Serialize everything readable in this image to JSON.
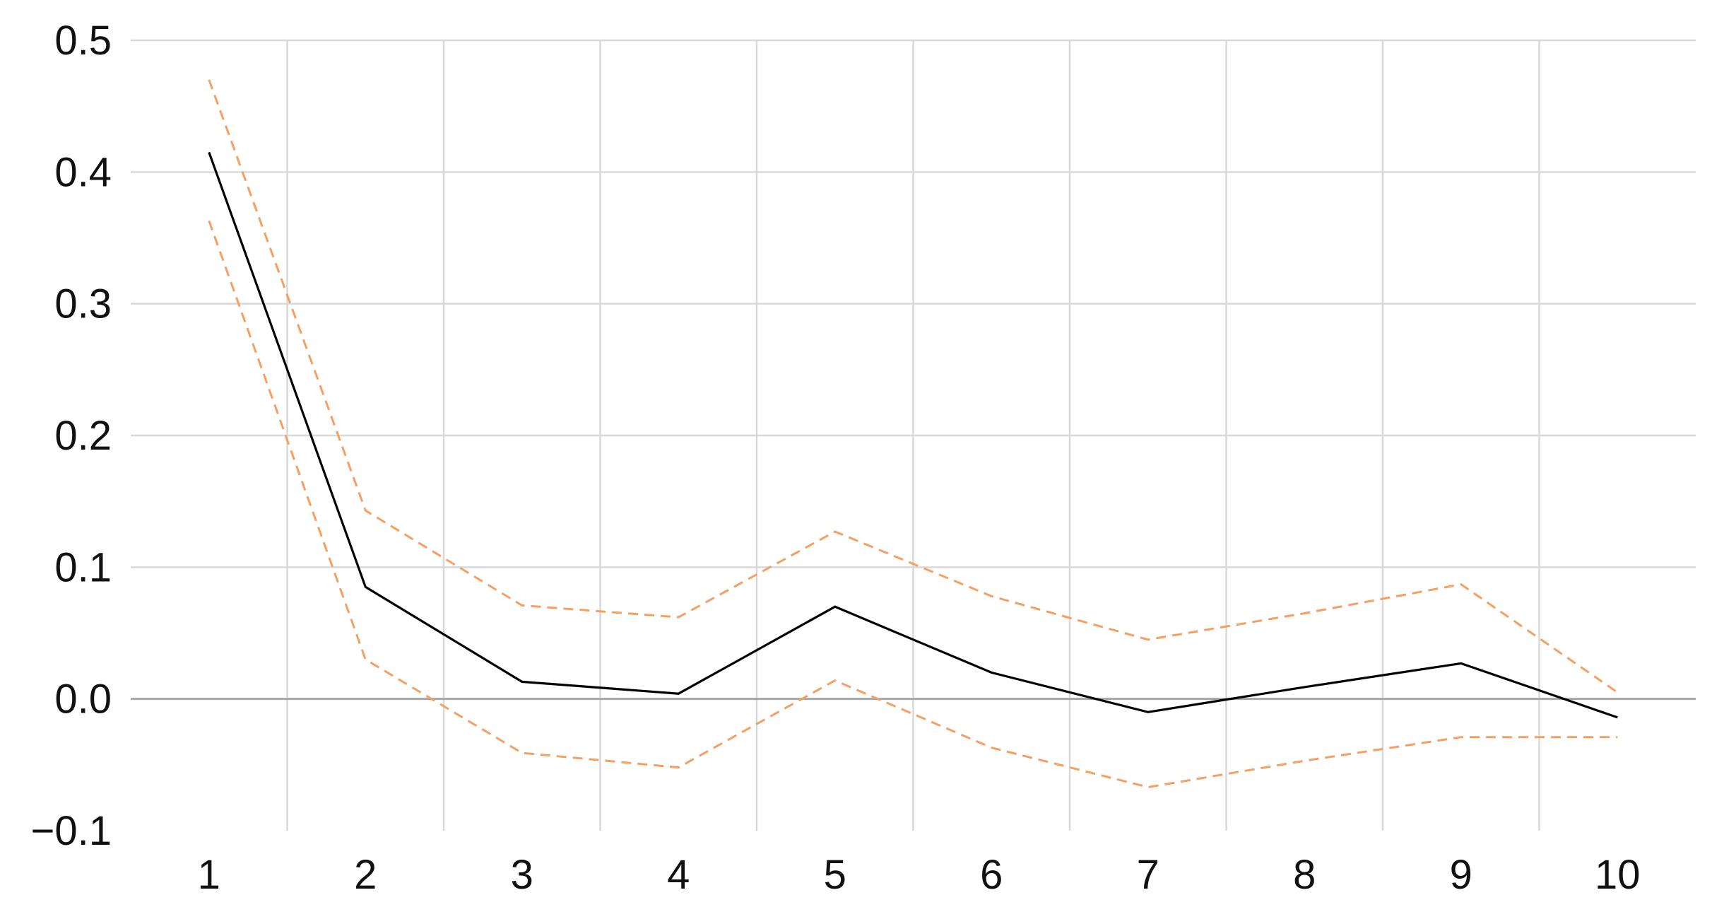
{
  "chart_data": {
    "type": "line",
    "title": "",
    "xlabel": "",
    "ylabel": "",
    "x": [
      1,
      2,
      3,
      4,
      5,
      6,
      7,
      8,
      9,
      10
    ],
    "x_tick_labels": [
      "1",
      "2",
      "3",
      "4",
      "5",
      "6",
      "7",
      "8",
      "9",
      "10"
    ],
    "ylim": [
      -0.1,
      0.5
    ],
    "y_ticks": [
      -0.1,
      0.0,
      0.1,
      0.2,
      0.3,
      0.4,
      0.5
    ],
    "y_tick_labels": [
      "−0.1",
      "0.0",
      "0.1",
      "0.2",
      "0.3",
      "0.4",
      "0.5"
    ],
    "grid": true,
    "legend": "none",
    "series": [
      {
        "key": "response",
        "color": "#000000",
        "line_style": "solid",
        "values": [
          0.415,
          0.085,
          0.013,
          0.004,
          0.07,
          0.02,
          -0.01,
          0.009,
          0.027,
          -0.014
        ]
      },
      {
        "key": "upper",
        "color": "#f4a064",
        "line_style": "dashed",
        "values": [
          0.47,
          0.143,
          0.071,
          0.062,
          0.127,
          0.078,
          0.045,
          0.065,
          0.087,
          0.005
        ]
      },
      {
        "key": "lower",
        "color": "#f4a064",
        "line_style": "dashed",
        "values": [
          0.363,
          0.03,
          -0.041,
          -0.052,
          0.014,
          -0.037,
          -0.067,
          -0.047,
          -0.029,
          -0.029
        ]
      }
    ]
  }
}
